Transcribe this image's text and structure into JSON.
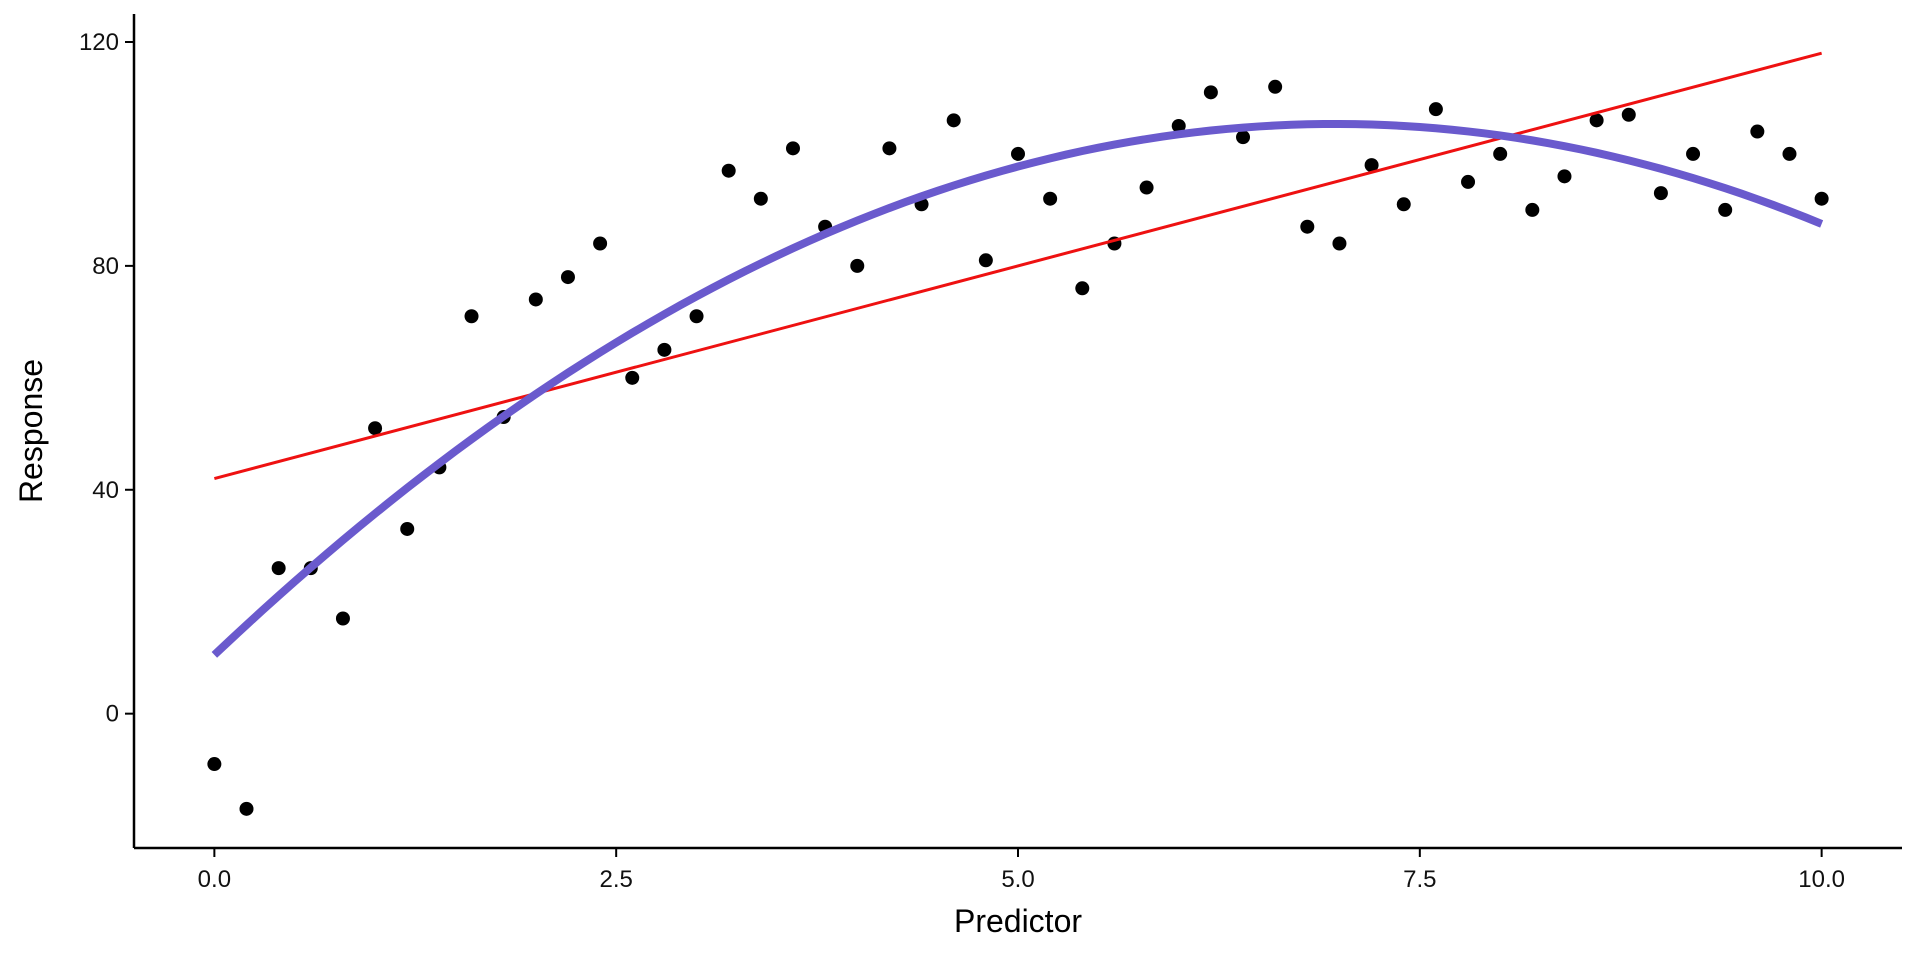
{
  "chart_data": {
    "type": "scatter",
    "title": "",
    "xlabel": "Predictor",
    "ylabel": "Response",
    "xlim": [
      -0.5,
      10.5
    ],
    "ylim": [
      -24,
      125
    ],
    "xticks": [
      0,
      2.5,
      5,
      7.5,
      10
    ],
    "xtick_labels": [
      "0.0",
      "2.5",
      "5.0",
      "7.5",
      "10.0"
    ],
    "yticks": [
      0,
      40,
      80,
      120
    ],
    "ytick_labels": [
      "0",
      "40",
      "80",
      "120"
    ],
    "grid": false,
    "legend": "none",
    "colors": {
      "points": "#000000",
      "linear_fit": "#ee1111",
      "quadratic_fit": "#6a5acd",
      "axis": "#000000"
    },
    "points": {
      "x": [
        0.0,
        0.2,
        0.4,
        0.6,
        0.8,
        1.0,
        1.2,
        1.4,
        1.6,
        1.8,
        2.0,
        2.2,
        2.4,
        2.6,
        2.8,
        3.0,
        3.2,
        3.4,
        3.6,
        3.8,
        4.0,
        4.2,
        4.4,
        4.6,
        4.8,
        5.0,
        5.2,
        5.4,
        5.6,
        5.8,
        6.0,
        6.2,
        6.4,
        6.6,
        6.8,
        7.0,
        7.2,
        7.4,
        7.6,
        7.8,
        8.0,
        8.2,
        8.4,
        8.6,
        8.8,
        9.0,
        9.2,
        9.4,
        9.6,
        9.8,
        10.0
      ],
      "y": [
        -9,
        -17,
        26,
        26,
        17,
        51,
        33,
        44,
        71,
        53,
        74,
        78,
        84,
        60,
        65,
        71,
        97,
        92,
        101,
        87,
        80,
        101,
        91,
        106,
        81,
        100,
        92,
        76,
        84,
        94,
        105,
        111,
        103,
        112,
        87,
        84,
        98,
        91,
        108,
        95,
        100,
        90,
        96,
        106,
        107,
        93,
        100,
        90,
        104,
        100,
        92
      ]
    },
    "linear_fit": {
      "intercept": 42,
      "slope": 7.6,
      "x_range": [
        0,
        10
      ]
    },
    "quadratic_fit": {
      "a": -1.95,
      "b": 27.2,
      "c": 10.5,
      "x_range": [
        0,
        10
      ]
    }
  }
}
